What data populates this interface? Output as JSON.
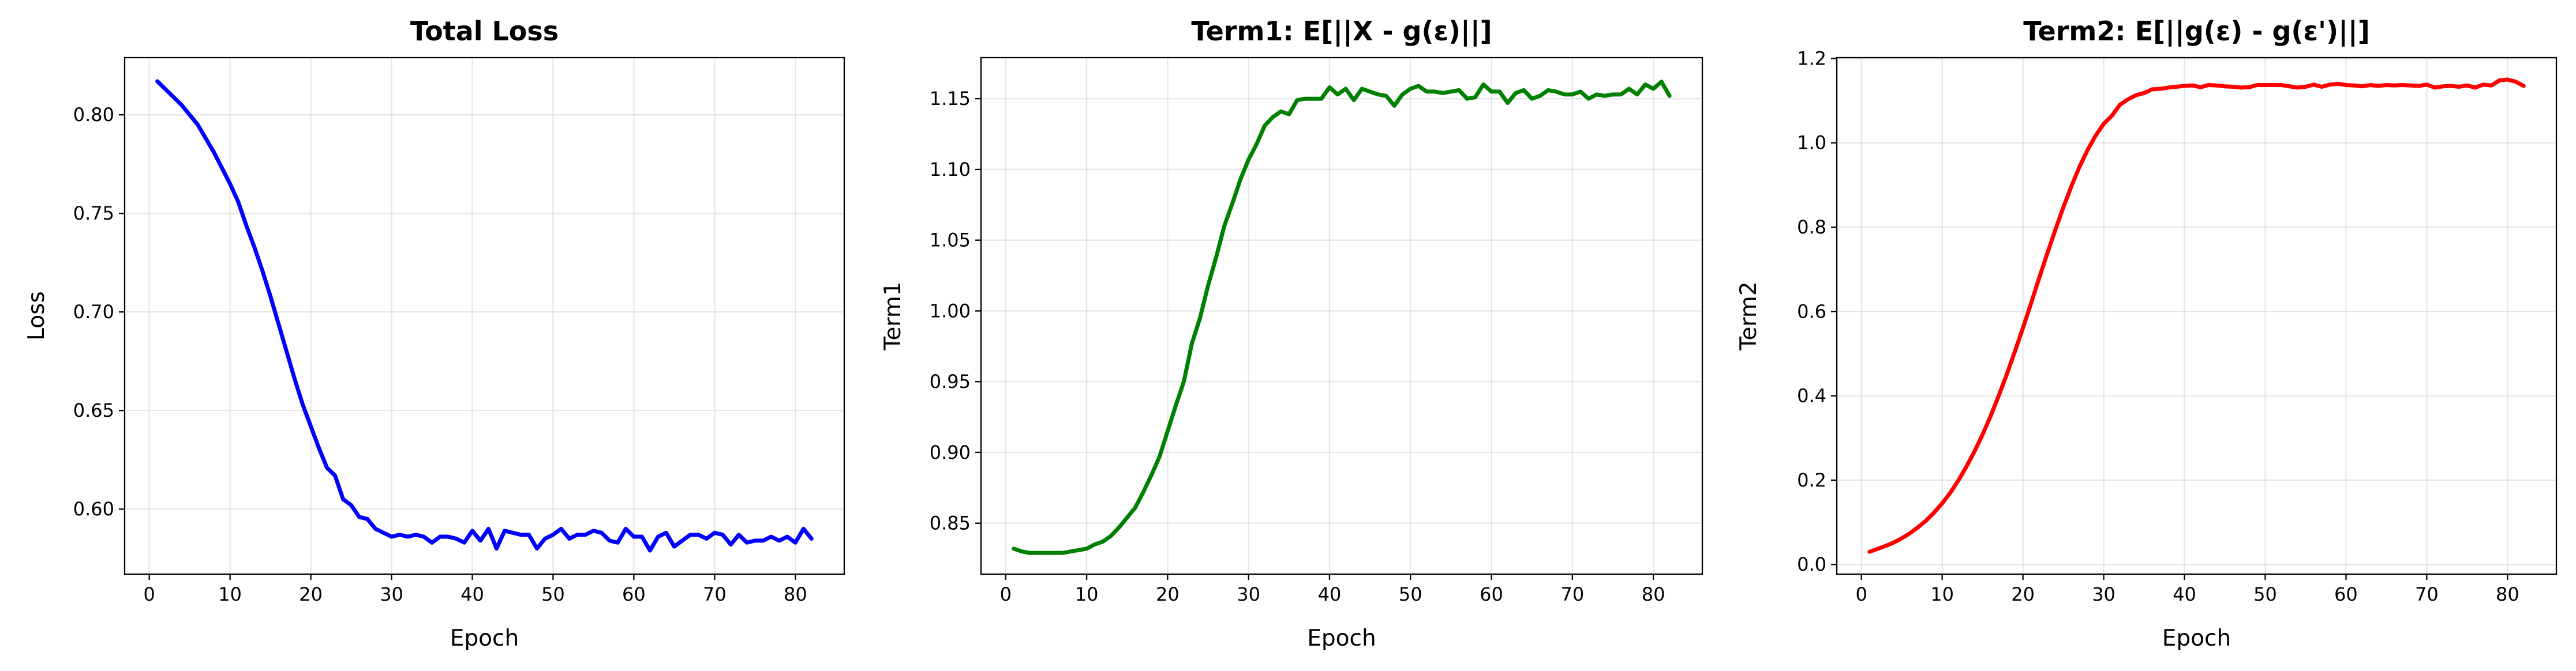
{
  "chart_data": [
    {
      "type": "line",
      "title": "Total Loss",
      "xlabel": "Epoch",
      "ylabel": "Loss",
      "color": "#0000ff",
      "grid": true,
      "x": [
        1,
        2,
        3,
        4,
        5,
        6,
        7,
        8,
        9,
        10,
        11,
        12,
        13,
        14,
        15,
        16,
        17,
        18,
        19,
        20,
        21,
        22,
        23,
        24,
        25,
        26,
        27,
        28,
        29,
        30,
        31,
        32,
        33,
        34,
        35,
        36,
        37,
        38,
        39,
        40,
        41,
        42,
        43,
        44,
        45,
        46,
        47,
        48,
        49,
        50,
        51,
        52,
        53,
        54,
        55,
        56,
        57,
        58,
        59,
        60,
        61,
        62,
        63,
        64,
        65,
        66,
        67,
        68,
        69,
        70,
        71,
        72,
        73,
        74,
        75,
        76,
        77,
        78,
        79,
        80,
        81,
        82
      ],
      "values": [
        0.817,
        0.813,
        0.809,
        0.805,
        0.8,
        0.795,
        0.788,
        0.781,
        0.773,
        0.765,
        0.756,
        0.744,
        0.733,
        0.721,
        0.708,
        0.694,
        0.68,
        0.666,
        0.653,
        0.642,
        0.631,
        0.621,
        0.617,
        0.605,
        0.602,
        0.596,
        0.595,
        0.59,
        0.588,
        0.586,
        0.587,
        0.586,
        0.587,
        0.586,
        0.583,
        0.586,
        0.586,
        0.585,
        0.583,
        0.589,
        0.584,
        0.59,
        0.58,
        0.589,
        0.588,
        0.587,
        0.587,
        0.58,
        0.585,
        0.587,
        0.59,
        0.585,
        0.587,
        0.587,
        0.589,
        0.588,
        0.584,
        0.583,
        0.59,
        0.586,
        0.586,
        0.579,
        0.586,
        0.588,
        0.581,
        0.584,
        0.587,
        0.587,
        0.585,
        0.588,
        0.587,
        0.582,
        0.587,
        0.583,
        0.584,
        0.584,
        0.586,
        0.584,
        0.586,
        0.583,
        0.59,
        0.585
      ],
      "xlim": [
        -3.05,
        86.05
      ],
      "xticks": [
        0,
        10,
        20,
        30,
        40,
        50,
        60,
        70,
        80
      ],
      "ylim": [
        0.567,
        0.829
      ],
      "yticks": [
        {
          "value": 0.6,
          "label": "0.60"
        },
        {
          "value": 0.65,
          "label": "0.65"
        },
        {
          "value": 0.7,
          "label": "0.70"
        },
        {
          "value": 0.75,
          "label": "0.75"
        },
        {
          "value": 0.8,
          "label": "0.80"
        }
      ]
    },
    {
      "type": "line",
      "title": "Term1: E[||X - g(ε)||]",
      "xlabel": "Epoch",
      "ylabel": "Term1",
      "color": "#008000",
      "grid": true,
      "x": [
        1,
        2,
        3,
        4,
        5,
        6,
        7,
        8,
        9,
        10,
        11,
        12,
        13,
        14,
        15,
        16,
        17,
        18,
        19,
        20,
        21,
        22,
        23,
        24,
        25,
        26,
        27,
        28,
        29,
        30,
        31,
        32,
        33,
        34,
        35,
        36,
        37,
        38,
        39,
        40,
        41,
        42,
        43,
        44,
        45,
        46,
        47,
        48,
        49,
        50,
        51,
        52,
        53,
        54,
        55,
        56,
        57,
        58,
        59,
        60,
        61,
        62,
        63,
        64,
        65,
        66,
        67,
        68,
        69,
        70,
        71,
        72,
        73,
        74,
        75,
        76,
        77,
        78,
        79,
        80,
        81,
        82
      ],
      "values": [
        0.832,
        0.83,
        0.829,
        0.829,
        0.829,
        0.829,
        0.829,
        0.83,
        0.831,
        0.832,
        0.835,
        0.837,
        0.841,
        0.847,
        0.854,
        0.861,
        0.872,
        0.884,
        0.897,
        0.915,
        0.933,
        0.95,
        0.977,
        0.995,
        1.018,
        1.038,
        1.06,
        1.076,
        1.093,
        1.107,
        1.118,
        1.131,
        1.137,
        1.141,
        1.139,
        1.149,
        1.15,
        1.15,
        1.15,
        1.158,
        1.153,
        1.157,
        1.149,
        1.157,
        1.155,
        1.153,
        1.152,
        1.145,
        1.153,
        1.157,
        1.159,
        1.155,
        1.155,
        1.154,
        1.155,
        1.156,
        1.15,
        1.151,
        1.16,
        1.155,
        1.155,
        1.147,
        1.154,
        1.156,
        1.15,
        1.152,
        1.156,
        1.155,
        1.153,
        1.153,
        1.155,
        1.15,
        1.153,
        1.152,
        1.153,
        1.153,
        1.157,
        1.153,
        1.16,
        1.157,
        1.162,
        1.152
      ],
      "xlim": [
        -3.05,
        86.05
      ],
      "xticks": [
        0,
        10,
        20,
        30,
        40,
        50,
        60,
        70,
        80
      ],
      "ylim": [
        0.814,
        1.179
      ],
      "yticks": [
        {
          "value": 0.85,
          "label": "0.85"
        },
        {
          "value": 0.9,
          "label": "0.90"
        },
        {
          "value": 0.95,
          "label": "0.95"
        },
        {
          "value": 1.0,
          "label": "1.00"
        },
        {
          "value": 1.05,
          "label": "1.05"
        },
        {
          "value": 1.1,
          "label": "1.10"
        },
        {
          "value": 1.15,
          "label": "1.15"
        }
      ]
    },
    {
      "type": "line",
      "title": "Term2: E[||g(ε) - g(ε')||]",
      "xlabel": "Epoch",
      "ylabel": "Term2",
      "color": "#ff0000",
      "grid": true,
      "x": [
        1,
        2,
        3,
        4,
        5,
        6,
        7,
        8,
        9,
        10,
        11,
        12,
        13,
        14,
        15,
        16,
        17,
        18,
        19,
        20,
        21,
        22,
        23,
        24,
        25,
        26,
        27,
        28,
        29,
        30,
        31,
        32,
        33,
        34,
        35,
        36,
        37,
        38,
        39,
        40,
        41,
        42,
        43,
        44,
        45,
        46,
        47,
        48,
        49,
        50,
        51,
        52,
        53,
        54,
        55,
        56,
        57,
        58,
        59,
        60,
        61,
        62,
        63,
        64,
        65,
        66,
        67,
        68,
        69,
        70,
        71,
        72,
        73,
        74,
        75,
        76,
        77,
        78,
        79,
        80,
        81,
        82
      ],
      "values": [
        0.03,
        0.037,
        0.044,
        0.052,
        0.062,
        0.074,
        0.088,
        0.104,
        0.123,
        0.145,
        0.17,
        0.199,
        0.232,
        0.268,
        0.308,
        0.352,
        0.4,
        0.451,
        0.505,
        0.561,
        0.619,
        0.679,
        0.737,
        0.793,
        0.847,
        0.897,
        0.943,
        0.983,
        1.017,
        1.045,
        1.064,
        1.09,
        1.103,
        1.113,
        1.118,
        1.127,
        1.128,
        1.131,
        1.133,
        1.135,
        1.136,
        1.132,
        1.137,
        1.136,
        1.134,
        1.133,
        1.131,
        1.132,
        1.137,
        1.137,
        1.137,
        1.137,
        1.134,
        1.131,
        1.133,
        1.138,
        1.133,
        1.138,
        1.14,
        1.137,
        1.136,
        1.134,
        1.137,
        1.135,
        1.137,
        1.136,
        1.137,
        1.136,
        1.135,
        1.138,
        1.131,
        1.134,
        1.135,
        1.133,
        1.136,
        1.131,
        1.138,
        1.136,
        1.148,
        1.15,
        1.145,
        1.135
      ],
      "xlim": [
        -3.05,
        86.05
      ],
      "xticks": [
        0,
        10,
        20,
        30,
        40,
        50,
        60,
        70,
        80
      ],
      "ylim": [
        -0.023,
        1.202
      ],
      "yticks": [
        {
          "value": 0.0,
          "label": "0.0"
        },
        {
          "value": 0.2,
          "label": "0.2"
        },
        {
          "value": 0.4,
          "label": "0.4"
        },
        {
          "value": 0.6,
          "label": "0.6"
        },
        {
          "value": 0.8,
          "label": "0.8"
        },
        {
          "value": 1.0,
          "label": "1.0"
        },
        {
          "value": 1.2,
          "label": "1.2"
        }
      ]
    }
  ]
}
